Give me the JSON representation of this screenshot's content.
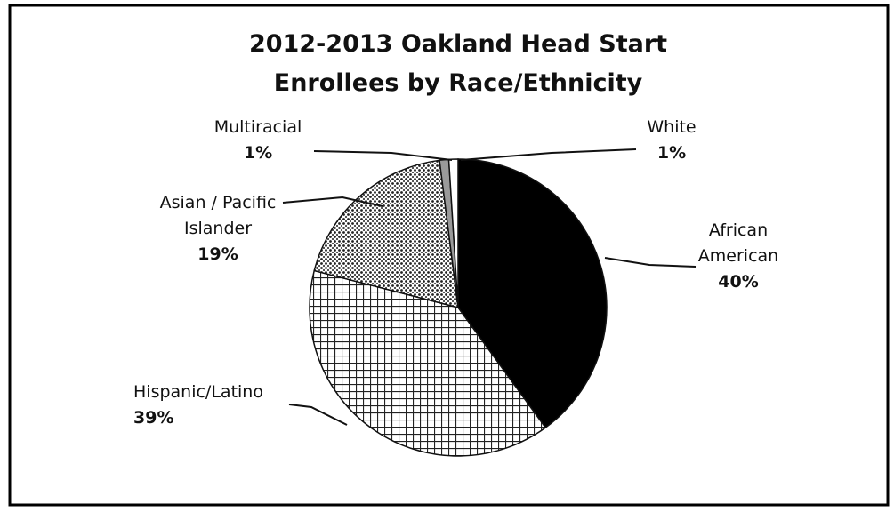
{
  "chart_data": {
    "type": "pie",
    "title": "2012-2013 Oakland Head Start Enrollees by Race/Ethnicity",
    "categories": [
      "African American",
      "Hispanic/Latino",
      "Asian / Pacific Islander",
      "Multiracial",
      "White"
    ],
    "values": [
      40,
      39,
      19,
      1,
      1
    ],
    "value_labels": [
      "40%",
      "39%",
      "19%",
      "1%",
      "1%"
    ],
    "colors": [
      "#000000",
      "#ffffff",
      "#ffffff",
      "#9a9a9a",
      "#ffffff"
    ]
  }
}
